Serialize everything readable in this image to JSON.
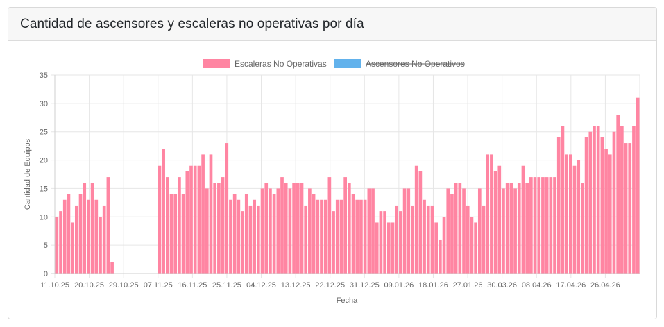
{
  "header": {
    "title": "Cantidad de ascensores y escaleras no operativas por día"
  },
  "colors": {
    "escaleras_fill": "#ff85a2",
    "escaleras_stroke": "#ff6384",
    "ascensores_fill": "#62b2ec",
    "grid": "#e6e6e6",
    "axis": "#cfcfcf",
    "text": "#666666"
  },
  "chart_data": {
    "type": "bar",
    "title": "Cantidad de ascensores y escaleras no operativas por día",
    "xlabel": "Fecha",
    "ylabel": "Cantidad de Equipos",
    "ylim": [
      0,
      35
    ],
    "yticks": [
      0,
      5,
      10,
      15,
      20,
      25,
      30,
      35
    ],
    "grid": true,
    "legend_position": "top-center",
    "x_tick_labels": [
      "11.10.25",
      "20.10.25",
      "29.10.25",
      "07.11.25",
      "16.11.25",
      "25.11.25",
      "04.12.25",
      "13.12.25",
      "22.12.25",
      "31.12.25",
      "09.01.26",
      "18.01.26",
      "27.01.26",
      "30.03.26",
      "08.04.26",
      "17.04.26",
      "26.04.26"
    ],
    "series": [
      {
        "name": "Escaleras No Operativas",
        "hidden": false,
        "values": [
          10,
          11,
          13,
          14,
          9,
          12,
          14,
          16,
          13,
          16,
          13,
          10,
          12,
          17,
          2,
          0,
          0,
          0,
          0,
          0,
          0,
          0,
          0,
          0,
          0,
          0,
          19,
          22,
          17,
          14,
          14,
          17,
          14,
          18,
          19,
          19,
          19,
          21,
          15,
          21,
          16,
          16,
          17,
          23,
          13,
          14,
          13,
          11,
          14,
          12,
          13,
          12,
          15,
          16,
          15,
          14,
          15,
          17,
          16,
          15,
          16,
          16,
          16,
          12,
          15,
          14,
          13,
          13,
          13,
          17,
          11,
          13,
          13,
          17,
          16,
          14,
          13,
          13,
          13,
          15,
          15,
          9,
          11,
          11,
          9,
          9,
          12,
          11,
          15,
          15,
          12,
          19,
          18,
          13,
          12,
          12,
          9,
          6,
          10,
          15,
          14,
          16,
          16,
          15,
          12,
          10,
          9,
          15,
          12,
          21,
          21,
          18,
          19,
          15,
          16,
          16,
          15,
          16,
          19,
          16,
          17,
          17,
          17,
          17,
          17,
          17,
          17,
          24,
          26,
          21,
          21,
          19,
          20,
          16,
          24,
          25,
          26,
          26,
          24,
          22,
          21,
          25,
          28,
          26,
          23,
          23,
          26,
          31
        ]
      },
      {
        "name": "Ascensores No Operativos",
        "hidden": true,
        "values": []
      }
    ]
  }
}
